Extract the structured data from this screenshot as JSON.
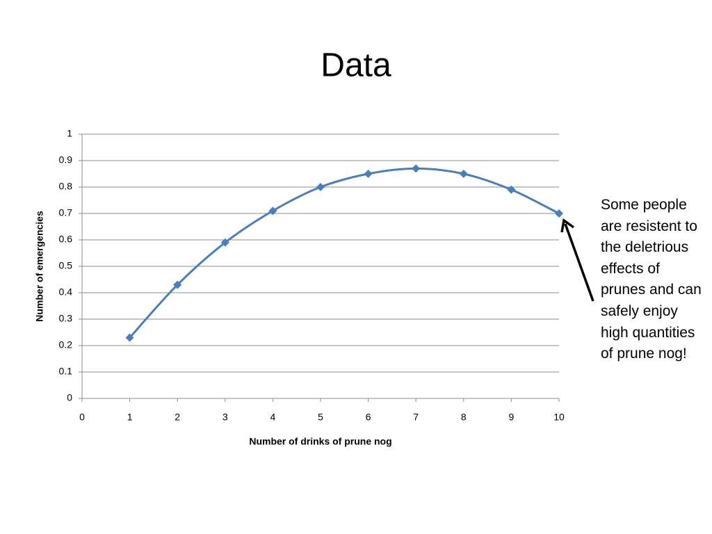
{
  "chart_data": {
    "type": "line",
    "title": "Data",
    "x_label": "Number of drinks of prune nog",
    "y_label": "Number of emergencies",
    "x": [
      1,
      2,
      3,
      4,
      5,
      6,
      7,
      8,
      9,
      10
    ],
    "values": [
      0.23,
      0.43,
      0.59,
      0.71,
      0.8,
      0.85,
      0.87,
      0.85,
      0.79,
      0.7
    ],
    "color": "#4a7ebb",
    "xlim": [
      0,
      10
    ],
    "xticks": [
      0,
      1,
      2,
      3,
      4,
      5,
      6,
      7,
      8,
      9,
      10
    ],
    "ylim": [
      0,
      1
    ],
    "yticks": [
      0,
      0.1,
      0.2,
      0.3,
      0.4,
      0.5,
      0.6,
      0.7,
      0.8,
      0.9,
      1
    ],
    "grid": true,
    "smooth": true,
    "annotation": "Some people are resistent to the deletrious effects of prunes and can safely enjoy high quantities of prune nog!"
  }
}
